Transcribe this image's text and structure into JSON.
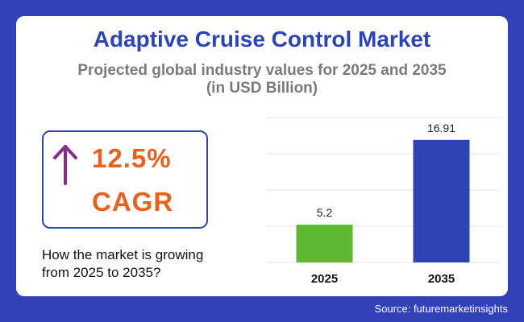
{
  "title": "Adaptive Cruise Control Market",
  "subtitle_line1": "Projected global industry values for 2025 and 2035",
  "subtitle_line2": "(in USD Billion)",
  "cagr": {
    "value": "12.5%",
    "label": "CAGR",
    "arrow_icon": "arrow-up-icon",
    "arrow_color": "#8b2a8b",
    "text_color": "#e8611d"
  },
  "growth_question_line1": "How the market is growing",
  "growth_question_line2": "from 2025 to 2035?",
  "source": "Source: futuremarketinsights",
  "colors": {
    "background": "#3142b8",
    "title": "#2e44b3",
    "bar_2025": "#5bb830",
    "bar_2035": "#2e44b3"
  },
  "chart_data": {
    "type": "bar",
    "categories": [
      "2025",
      "2035"
    ],
    "values": [
      5.2,
      16.91
    ],
    "value_labels": [
      "5.2",
      "16.91"
    ],
    "colors": [
      "#5bb830",
      "#2e44b3"
    ],
    "ylim": [
      0,
      20
    ],
    "grid": true,
    "title": "",
    "xlabel": "",
    "ylabel": ""
  }
}
